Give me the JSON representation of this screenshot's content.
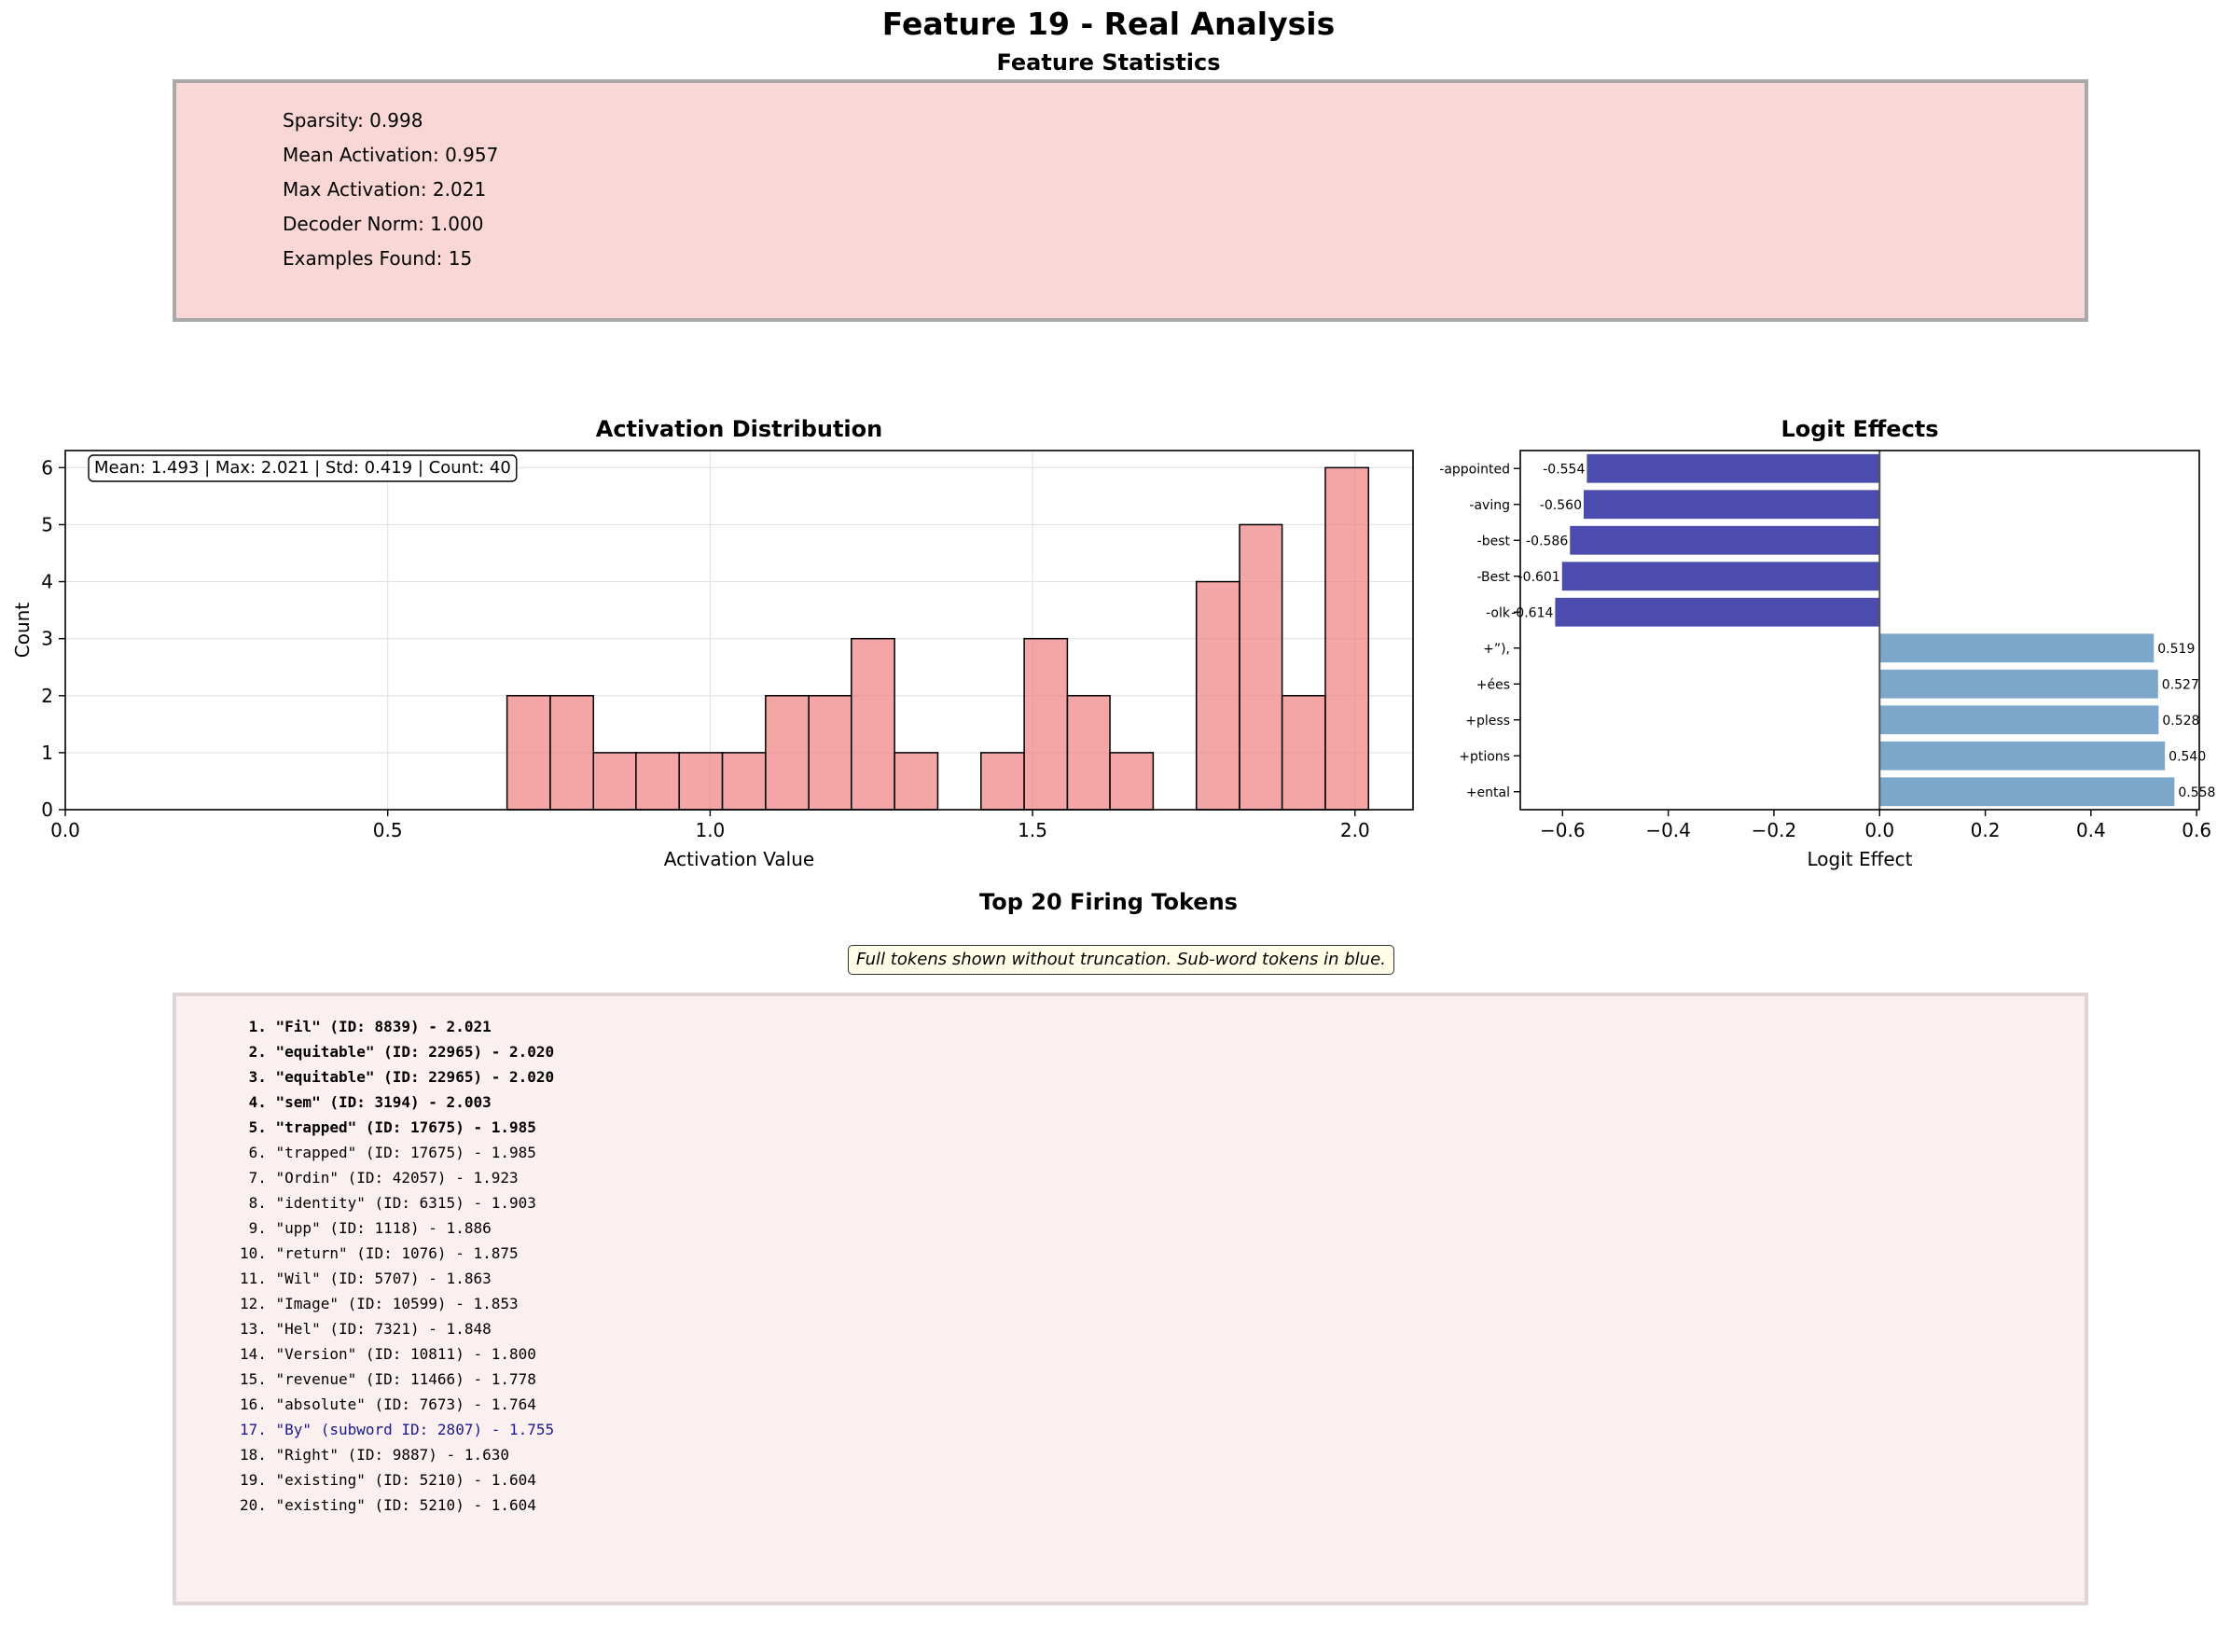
{
  "page": {
    "title": "Feature 19 - Real Analysis",
    "stats_title": "Feature Statistics",
    "stats": [
      "Sparsity: 0.998",
      "Mean Activation: 0.957",
      "Max Activation: 2.021",
      "Decoder Norm: 1.000",
      "Examples Found: 15"
    ],
    "tokens_title": "Top 20 Firing Tokens",
    "tokens_note": "Full tokens shown without truncation. Sub-word tokens in blue.",
    "tokens": [
      {
        "text": " 1. \"Fil\" (ID: 8839) - 2.021",
        "style": "bold"
      },
      {
        "text": " 2. \"equitable\" (ID: 22965) - 2.020",
        "style": "bold"
      },
      {
        "text": " 3. \"equitable\" (ID: 22965) - 2.020",
        "style": "bold"
      },
      {
        "text": " 4. \"sem\" (ID: 3194) - 2.003",
        "style": "bold"
      },
      {
        "text": " 5. \"trapped\" (ID: 17675) - 1.985",
        "style": "bold"
      },
      {
        "text": " 6. \"trapped\" (ID: 17675) - 1.985",
        "style": "normal"
      },
      {
        "text": " 7. \"Ordin\" (ID: 42057) - 1.923",
        "style": "normal"
      },
      {
        "text": " 8. \"identity\" (ID: 6315) - 1.903",
        "style": "normal"
      },
      {
        "text": " 9. \"upp\" (ID: 1118) - 1.886",
        "style": "normal"
      },
      {
        "text": "10. \"return\" (ID: 1076) - 1.875",
        "style": "normal"
      },
      {
        "text": "11. \"Wil\" (ID: 5707) - 1.863",
        "style": "normal"
      },
      {
        "text": "12. \"Image\" (ID: 10599) - 1.853",
        "style": "normal"
      },
      {
        "text": "13. \"Hel\" (ID: 7321) - 1.848",
        "style": "normal"
      },
      {
        "text": "14. \"Version\" (ID: 10811) - 1.800",
        "style": "normal"
      },
      {
        "text": "15. \"revenue\" (ID: 11466) - 1.778",
        "style": "normal"
      },
      {
        "text": "16. \"absolute\" (ID: 7673) - 1.764",
        "style": "normal"
      },
      {
        "text": "17. \"By\" (subword ID: 2807) - 1.755",
        "style": "subword"
      },
      {
        "text": "18. \"Right\" (ID: 9887) - 1.630",
        "style": "normal"
      },
      {
        "text": "19. \"existing\" (ID: 5210) - 1.604",
        "style": "normal"
      },
      {
        "text": "20. \"existing\" (ID: 5210) - 1.604",
        "style": "normal"
      }
    ]
  },
  "chart_data": [
    {
      "type": "bar",
      "title": "Activation Distribution",
      "xlabel": "Activation Value",
      "ylabel": "Count",
      "xlim": [
        0.0,
        2.09
      ],
      "ylim": [
        0,
        6.3
      ],
      "xticks": [
        "0.0",
        "0.5",
        "1.0",
        "1.5",
        "2.0"
      ],
      "yticks": [
        "0",
        "1",
        "2",
        "3",
        "4",
        "5",
        "6"
      ],
      "grid": true,
      "stats_label": "Mean: 1.493 | Max: 2.021 | Std: 0.419 | Count: 40",
      "bin_edges": [
        0.685,
        0.752,
        0.819,
        0.885,
        0.952,
        1.019,
        1.086,
        1.153,
        1.219,
        1.286,
        1.353,
        1.42,
        1.487,
        1.554,
        1.62,
        1.687,
        1.754,
        1.821,
        1.887,
        1.954,
        2.021
      ],
      "counts": [
        2,
        2,
        1,
        1,
        1,
        1,
        2,
        2,
        3,
        1,
        0,
        1,
        3,
        2,
        1,
        0,
        4,
        5,
        2,
        6
      ],
      "colors": {
        "fill": "#f08080",
        "edge": "#000000"
      }
    },
    {
      "type": "bar",
      "orientation": "horizontal",
      "title": "Logit Effects",
      "xlabel": "Logit Effect",
      "xlim": [
        -0.68,
        0.605
      ],
      "xticks": [
        "−0.6",
        "−0.4",
        "−0.2",
        "0.0",
        "0.2",
        "0.4",
        "0.6"
      ],
      "categories": [
        "-appointed",
        "-aving",
        "-best",
        "-Best",
        "-olk",
        "+”),",
        "+ées",
        "+pless",
        "+ptions",
        "+ental"
      ],
      "values": [
        -0.554,
        -0.56,
        -0.586,
        -0.601,
        -0.614,
        0.519,
        0.527,
        0.528,
        0.54,
        0.558
      ],
      "value_labels": [
        "-0.554",
        "-0.560",
        "-0.586",
        "-0.601",
        "-0.614",
        "0.519",
        "0.527",
        "0.528",
        "0.540",
        "0.558"
      ],
      "colors": {
        "negative": "#00008b",
        "positive": "#4682b4"
      }
    }
  ]
}
